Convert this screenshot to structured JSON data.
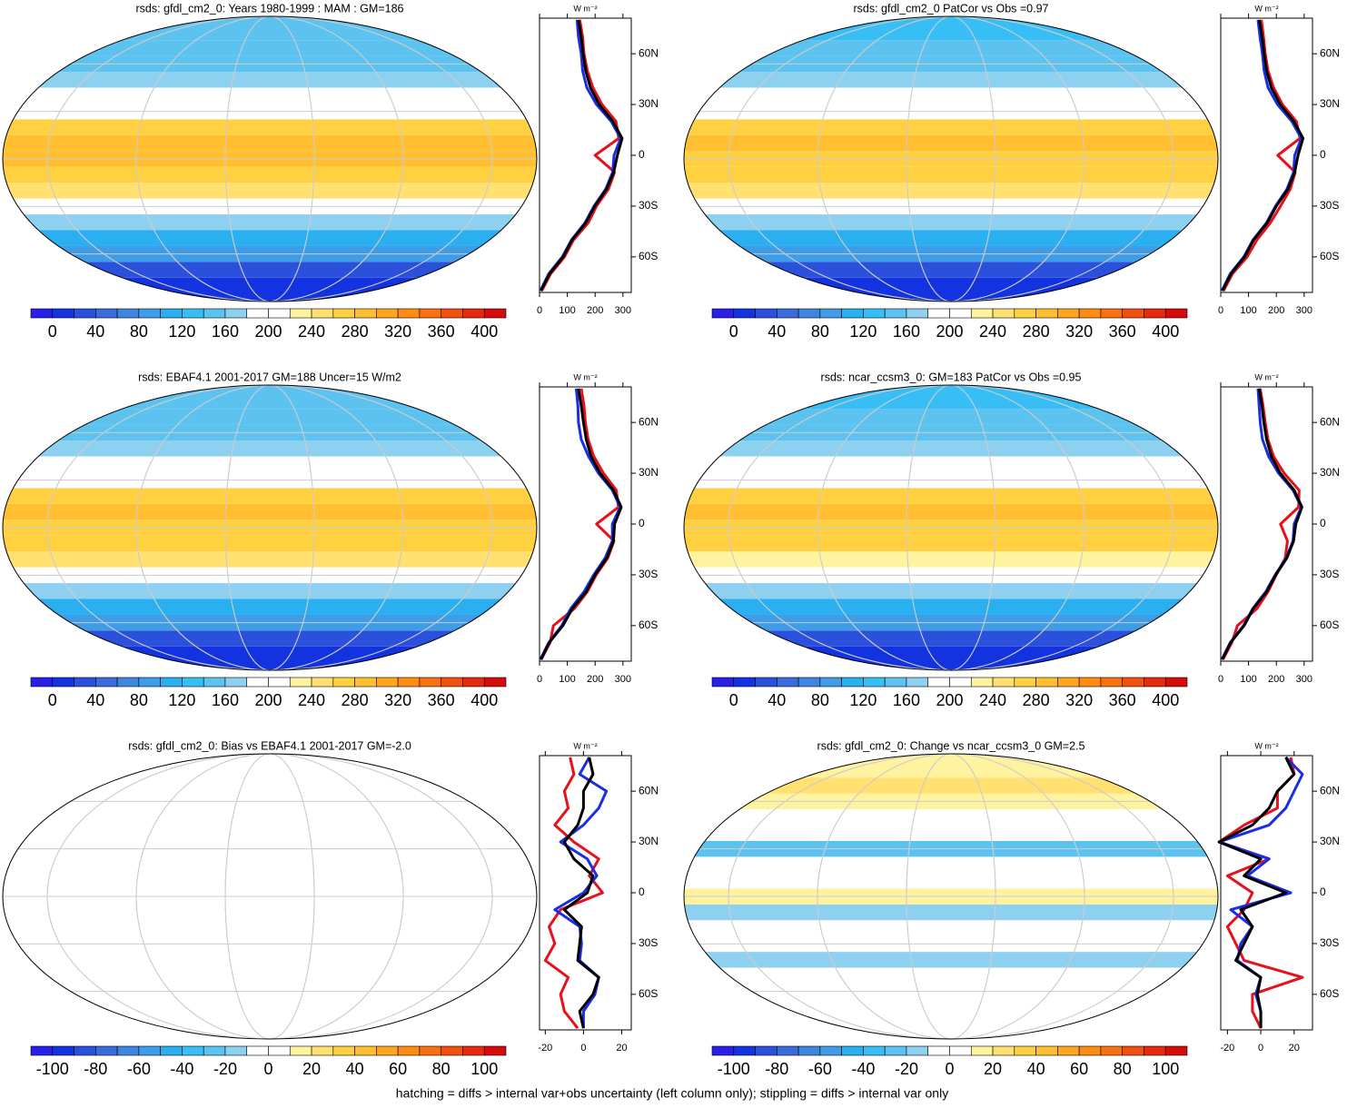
{
  "chart_data": [
    {
      "type": "zonal_map",
      "title": "rsds: gfdl_cm2_0: Years 1980-1999 : MAM : GM=186",
      "clim": [
        -20,
        420
      ],
      "cticks": [
        0,
        40,
        80,
        120,
        160,
        200,
        240,
        280,
        320,
        360,
        400
      ],
      "colors": [
        "#2a1fe8",
        "#1433e0",
        "#2a50dc",
        "#3a6cdc",
        "#3f86e0",
        "#3f9ce6",
        "#2aaff0",
        "#37bff5",
        "#5cc3f0",
        "#8ed0f0",
        "#ffffff",
        "#ffffff",
        "#fff3a0",
        "#ffe070",
        "#ffd040",
        "#ffbf30",
        "#ffa520",
        "#ff8c10",
        "#f87010",
        "#f05010",
        "#e52a10",
        "#d40c0c"
      ],
      "unit": "W m⁻²",
      "xlim": [
        0,
        330
      ],
      "xticks": [
        0,
        100,
        200,
        300
      ],
      "ylim": [
        -81,
        81
      ],
      "yticks": [
        {
          "value": -60,
          "label": "60S"
        },
        {
          "value": -30,
          "label": "30S"
        },
        0,
        {
          "value": 30,
          "label": "30N"
        },
        {
          "value": 60,
          "label": "60N"
        }
      ],
      "lat": [
        -80,
        -70,
        -60,
        -50,
        -40,
        -30,
        -20,
        -10,
        0,
        10,
        20,
        30,
        40,
        50,
        60,
        70,
        80
      ],
      "series": [
        {
          "color": "#e8101a",
          "values": [
            8,
            40,
            90,
            122,
            175,
            205,
            248,
            270,
            200,
            285,
            275,
            225,
            192,
            172,
            160,
            155,
            145
          ]
        },
        {
          "color": "#1a2ee8",
          "values": [
            3,
            33,
            82,
            115,
            163,
            196,
            238,
            263,
            268,
            292,
            258,
            205,
            170,
            155,
            150,
            140,
            135
          ]
        },
        {
          "color": "#000000",
          "values": [
            5,
            36,
            85,
            117,
            166,
            199,
            241,
            267,
            280,
            297,
            264,
            215,
            183,
            166,
            157,
            150,
            140
          ]
        }
      ]
    },
    {
      "type": "zonal_map",
      "title": "rsds: gfdl_cm2_0 PatCor vs Obs =0.97",
      "clim": [
        -20,
        420
      ],
      "cticks": [
        0,
        40,
        80,
        120,
        160,
        200,
        240,
        280,
        320,
        360,
        400
      ],
      "colors": [
        "#2a1fe8",
        "#1433e0",
        "#2a50dc",
        "#3a6cdc",
        "#3f86e0",
        "#3f9ce6",
        "#2aaff0",
        "#37bff5",
        "#5cc3f0",
        "#8ed0f0",
        "#ffffff",
        "#ffffff",
        "#fff3a0",
        "#ffe070",
        "#ffd040",
        "#ffbf30",
        "#ffa520",
        "#ff8c10",
        "#f87010",
        "#f05010",
        "#e52a10",
        "#d40c0c"
      ],
      "unit": "W m⁻²",
      "xlim": [
        0,
        330
      ],
      "xticks": [
        0,
        100,
        200,
        300
      ],
      "ylim": [
        -81,
        81
      ],
      "yticks": [
        {
          "value": -60,
          "label": "60S"
        },
        {
          "value": -30,
          "label": "30S"
        },
        0,
        {
          "value": 30,
          "label": "30N"
        },
        {
          "value": 60,
          "label": "60N"
        }
      ],
      "lat": [
        -80,
        -70,
        -60,
        -50,
        -40,
        -30,
        -20,
        -10,
        0,
        10,
        20,
        30,
        40,
        50,
        60,
        70,
        80
      ],
      "series": [
        {
          "color": "#e8101a",
          "values": [
            10,
            42,
            95,
            130,
            178,
            215,
            250,
            268,
            205,
            285,
            272,
            222,
            190,
            170,
            160,
            154,
            146
          ]
        },
        {
          "color": "#1a2ee8",
          "values": [
            4,
            34,
            83,
            116,
            164,
            197,
            238,
            262,
            266,
            290,
            256,
            204,
            170,
            156,
            150,
            141,
            134
          ]
        },
        {
          "color": "#000000",
          "values": [
            6,
            37,
            86,
            118,
            167,
            200,
            242,
            266,
            278,
            296,
            263,
            214,
            182,
            165,
            156,
            149,
            139
          ]
        }
      ]
    },
    {
      "type": "zonal_map",
      "title": "rsds: EBAF4.1 2001-2017 GM=188 Uncer=15 W/m2",
      "clim": [
        -20,
        420
      ],
      "cticks": [
        0,
        40,
        80,
        120,
        160,
        200,
        240,
        280,
        320,
        360,
        400
      ],
      "colors": [
        "#2a1fe8",
        "#1433e0",
        "#2a50dc",
        "#3a6cdc",
        "#3f86e0",
        "#3f9ce6",
        "#2aaff0",
        "#37bff5",
        "#5cc3f0",
        "#8ed0f0",
        "#ffffff",
        "#ffffff",
        "#fff3a0",
        "#ffe070",
        "#ffd040",
        "#ffbf30",
        "#ffa520",
        "#ff8c10",
        "#f87010",
        "#f05010",
        "#e52a10",
        "#d40c0c"
      ],
      "unit": "W m⁻²",
      "xlim": [
        0,
        330
      ],
      "xticks": [
        0,
        100,
        200,
        300
      ],
      "ylim": [
        -81,
        81
      ],
      "yticks": [
        {
          "value": -60,
          "label": "60S"
        },
        {
          "value": -30,
          "label": "30S"
        },
        0,
        {
          "value": 30,
          "label": "30N"
        },
        {
          "value": 60,
          "label": "60N"
        }
      ],
      "lat": [
        -80,
        -70,
        -60,
        -50,
        -40,
        -30,
        -20,
        -10,
        0,
        10,
        20,
        30,
        40,
        50,
        60,
        70,
        80
      ],
      "series": [
        {
          "color": "#e8101a",
          "values": [
            6,
            38,
            50,
            125,
            172,
            204,
            246,
            268,
            205,
            284,
            276,
            230,
            195,
            175,
            165,
            160,
            150
          ]
        },
        {
          "color": "#1a2ee8",
          "values": [
            3,
            33,
            80,
            112,
            160,
            195,
            236,
            262,
            262,
            290,
            262,
            212,
            176,
            150,
            140,
            138,
            132
          ]
        },
        {
          "color": "#000000",
          "values": [
            5,
            35,
            84,
            118,
            168,
            200,
            242,
            266,
            270,
            294,
            266,
            218,
            185,
            168,
            158,
            150,
            140
          ]
        }
      ]
    },
    {
      "type": "zonal_map",
      "title": "rsds: ncar_ccsm3_0: GM=183 PatCor vs Obs =0.95",
      "clim": [
        -20,
        420
      ],
      "cticks": [
        0,
        40,
        80,
        120,
        160,
        200,
        240,
        280,
        320,
        360,
        400
      ],
      "colors": [
        "#2a1fe8",
        "#1433e0",
        "#2a50dc",
        "#3a6cdc",
        "#3f86e0",
        "#3f9ce6",
        "#2aaff0",
        "#37bff5",
        "#5cc3f0",
        "#8ed0f0",
        "#ffffff",
        "#ffffff",
        "#fff3a0",
        "#ffe070",
        "#ffd040",
        "#ffbf30",
        "#ffa520",
        "#ff8c10",
        "#f87010",
        "#f05010",
        "#e52a10",
        "#d40c0c"
      ],
      "unit": "W m⁻²",
      "xlim": [
        0,
        330
      ],
      "xticks": [
        0,
        100,
        200,
        300
      ],
      "ylim": [
        -81,
        81
      ],
      "yticks": [
        {
          "value": -60,
          "label": "60S"
        },
        {
          "value": -30,
          "label": "30S"
        },
        0,
        {
          "value": 30,
          "label": "30N"
        },
        {
          "value": 60,
          "label": "60N"
        }
      ],
      "lat": [
        -80,
        -70,
        -60,
        -50,
        -40,
        -30,
        -20,
        -10,
        0,
        10,
        20,
        30,
        40,
        50,
        60,
        70,
        80
      ],
      "series": [
        {
          "color": "#e8101a",
          "values": [
            8,
            40,
            60,
            130,
            170,
            200,
            232,
            240,
            215,
            280,
            282,
            228,
            190,
            170,
            160,
            152,
            142
          ]
        },
        {
          "color": "#1a2ee8",
          "values": [
            4,
            34,
            82,
            115,
            162,
            196,
            236,
            260,
            264,
            290,
            260,
            208,
            172,
            150,
            142,
            138,
            134
          ]
        },
        {
          "color": "#000000",
          "values": [
            5,
            36,
            84,
            117,
            165,
            198,
            238,
            262,
            270,
            292,
            264,
            214,
            182,
            165,
            155,
            148,
            138
          ]
        }
      ]
    },
    {
      "type": "zonal_map",
      "title": "rsds: gfdl_cm2_0: Bias vs EBAF4.1 2001-2017 GM=-2.0",
      "clim": [
        -110,
        110
      ],
      "cticks": [
        -100,
        -80,
        -60,
        -40,
        -20,
        0,
        20,
        40,
        60,
        80,
        100
      ],
      "colors": [
        "#2a1fe8",
        "#1433e0",
        "#2a50dc",
        "#3a6cdc",
        "#3f86e0",
        "#3f9ce6",
        "#2aaff0",
        "#37bff5",
        "#5cc3f0",
        "#8ed0f0",
        "#ffffff",
        "#ffffff",
        "#fff3a0",
        "#ffe070",
        "#ffd040",
        "#ffbf30",
        "#ffa520",
        "#ff8c10",
        "#f87010",
        "#f05010",
        "#e52a10",
        "#d40c0c"
      ],
      "unit": "W m⁻²",
      "xlim": [
        -23,
        25
      ],
      "xticks": [
        -20,
        0,
        20
      ],
      "ylim": [
        -81,
        81
      ],
      "yticks": [
        {
          "value": -60,
          "label": "60S"
        },
        {
          "value": -30,
          "label": "30S"
        },
        0,
        {
          "value": 30,
          "label": "30N"
        },
        {
          "value": 60,
          "label": "60N"
        }
      ],
      "lat": [
        -80,
        -70,
        -60,
        -50,
        -40,
        -30,
        -20,
        -10,
        0,
        10,
        20,
        30,
        40,
        50,
        60,
        70,
        80
      ],
      "series": [
        {
          "color": "#e8101a",
          "values": [
            -3,
            -10,
            -12,
            -8,
            -20,
            -15,
            -18,
            -12,
            10,
            3,
            8,
            -5,
            -15,
            -8,
            -10,
            -5,
            -7
          ]
        },
        {
          "color": "#1a2ee8",
          "values": [
            0,
            0,
            6,
            8,
            -2,
            -1,
            -2,
            -15,
            0,
            7,
            2,
            -12,
            0,
            8,
            12,
            -2,
            3
          ]
        },
        {
          "color": "#000000",
          "values": [
            0,
            -2,
            5,
            8,
            -3,
            -2,
            -1,
            -10,
            2,
            5,
            -5,
            -10,
            -3,
            0,
            0,
            5,
            3
          ]
        }
      ]
    },
    {
      "type": "zonal_map",
      "title": "rsds: gfdl_cm2_0: Change vs ncar_ccsm3_0 GM=2.5",
      "clim": [
        -110,
        110
      ],
      "cticks": [
        -100,
        -80,
        -60,
        -40,
        -20,
        0,
        20,
        40,
        60,
        80,
        100
      ],
      "colors": [
        "#2a1fe8",
        "#1433e0",
        "#2a50dc",
        "#3a6cdc",
        "#3f86e0",
        "#3f9ce6",
        "#2aaff0",
        "#37bff5",
        "#5cc3f0",
        "#8ed0f0",
        "#ffffff",
        "#ffffff",
        "#fff3a0",
        "#ffe070",
        "#ffd040",
        "#ffbf30",
        "#ffa520",
        "#ff8c10",
        "#f87010",
        "#f05010",
        "#e52a10",
        "#d40c0c"
      ],
      "unit": "W m⁻²",
      "xlim": [
        -24,
        31
      ],
      "xticks": [
        -20,
        0,
        20
      ],
      "ylim": [
        -81,
        81
      ],
      "yticks": [
        {
          "value": -60,
          "label": "60S"
        },
        {
          "value": -30,
          "label": "30S"
        },
        0,
        {
          "value": 30,
          "label": "30N"
        },
        {
          "value": 60,
          "label": "60N"
        }
      ],
      "lat": [
        -80,
        -70,
        -60,
        -50,
        -40,
        -30,
        -20,
        -10,
        0,
        10,
        20,
        30,
        40,
        50,
        60,
        70,
        80
      ],
      "series": [
        {
          "color": "#e8101a",
          "values": [
            0,
            -5,
            -5,
            25,
            -10,
            -15,
            -20,
            -10,
            -5,
            -20,
            5,
            -25,
            -10,
            10,
            10,
            20,
            18
          ]
        },
        {
          "color": "#1a2ee8",
          "values": [
            0,
            0,
            -3,
            0,
            -14,
            -12,
            -5,
            -18,
            18,
            -8,
            5,
            -25,
            5,
            15,
            20,
            25,
            15
          ]
        },
        {
          "color": "#000000",
          "values": [
            0,
            0,
            -2,
            0,
            -15,
            -10,
            -5,
            -12,
            15,
            -10,
            0,
            -25,
            -5,
            5,
            10,
            20,
            15
          ]
        }
      ]
    }
  ],
  "footer": "hatching = diffs > internal var+obs uncertainty (left column only); stippling = diffs > internal var only"
}
